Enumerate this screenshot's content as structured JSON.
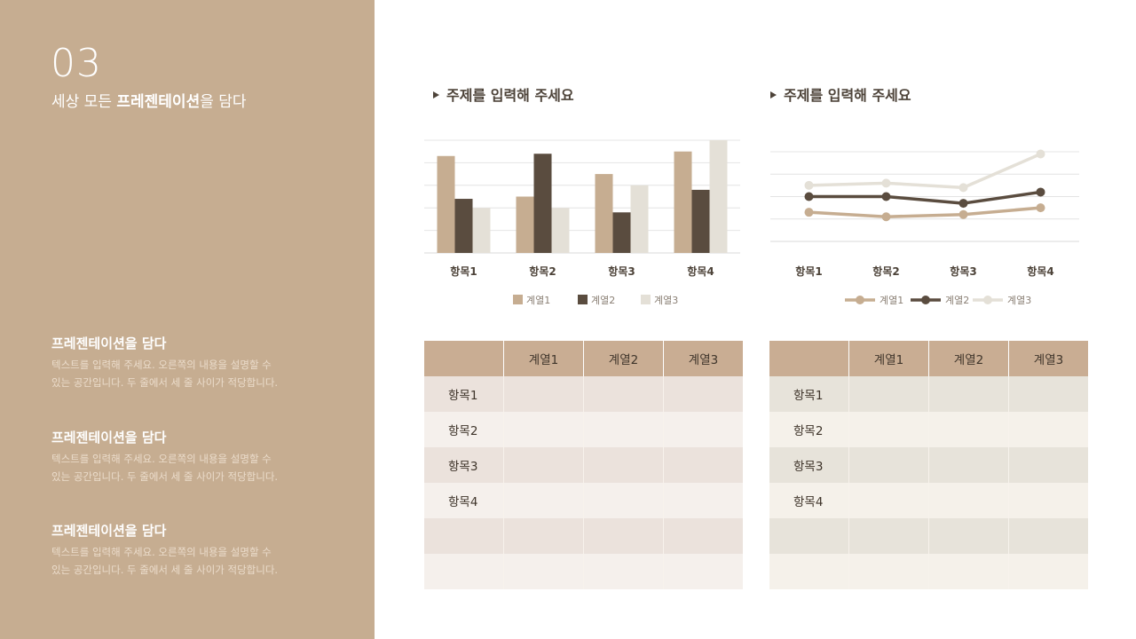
{
  "slide": {
    "number": "03",
    "subtitle_plain": "세상 모든 ",
    "subtitle_bold": "프레젠테이션",
    "subtitle_end": "을 담다"
  },
  "blocks": [
    {
      "title": "프레젠테이션을 담다",
      "line1": "텍스트를 입력해 주세요. 오른쪽의 내용을 설명할 수",
      "line2": "있는 공간입니다. 두 줄에서 세 줄 사이가 적당합니다."
    },
    {
      "title": "프레젠테이션을 담다",
      "line1": "텍스트를 입력해 주세요. 오른쪽의 내용을 설명할 수",
      "line2": "있는 공간입니다. 두 줄에서 세 줄 사이가 적당합니다."
    },
    {
      "title": "프레젠테이션을 담다",
      "line1": "텍스트를 입력해 주세요. 오른쪽의 내용을 설명할 수",
      "line2": "있는 공간입니다. 두 줄에서 세 줄 사이가 적당합니다."
    }
  ],
  "chart_titles": [
    "주제를 입력해 주세요",
    "주제를 입력해 주세요"
  ],
  "chart_data": [
    {
      "type": "bar",
      "categories": [
        "항목1",
        "항목2",
        "항목3",
        "항목4"
      ],
      "series": [
        {
          "name": "계열1",
          "values": [
            4.3,
            2.5,
            3.5,
            4.5
          ],
          "color": "#c6ad91"
        },
        {
          "name": "계열2",
          "values": [
            2.4,
            4.4,
            1.8,
            2.8
          ],
          "color": "#5a4c3f"
        },
        {
          "name": "계열3",
          "values": [
            2.0,
            2.0,
            3.0,
            5.0
          ],
          "color": "#e4e0d7"
        }
      ],
      "ylim": [
        0,
        5
      ],
      "grid": true,
      "legend": "bottom"
    },
    {
      "type": "line",
      "categories": [
        "항목1",
        "항목2",
        "항목3",
        "항목4"
      ],
      "series": [
        {
          "name": "계열1",
          "values": [
            1.3,
            1.1,
            1.2,
            1.5
          ],
          "color": "#c6ad91"
        },
        {
          "name": "계열2",
          "values": [
            2.0,
            2.0,
            1.7,
            2.2
          ],
          "color": "#5a4c3f"
        },
        {
          "name": "계열3",
          "values": [
            2.5,
            2.6,
            2.4,
            3.9
          ],
          "color": "#e4e0d7"
        }
      ],
      "ylim": [
        0,
        4
      ],
      "grid": true,
      "legend": "bottom"
    }
  ],
  "tables": [
    {
      "header": [
        "",
        "계열1",
        "계열2",
        "계열3"
      ],
      "rows": [
        "항목1",
        "항목2",
        "항목3",
        "항목4",
        "",
        ""
      ]
    },
    {
      "header": [
        "",
        "계열1",
        "계열2",
        "계열3"
      ],
      "rows": [
        "항목1",
        "항목2",
        "항목3",
        "항목4",
        "",
        ""
      ]
    }
  ]
}
